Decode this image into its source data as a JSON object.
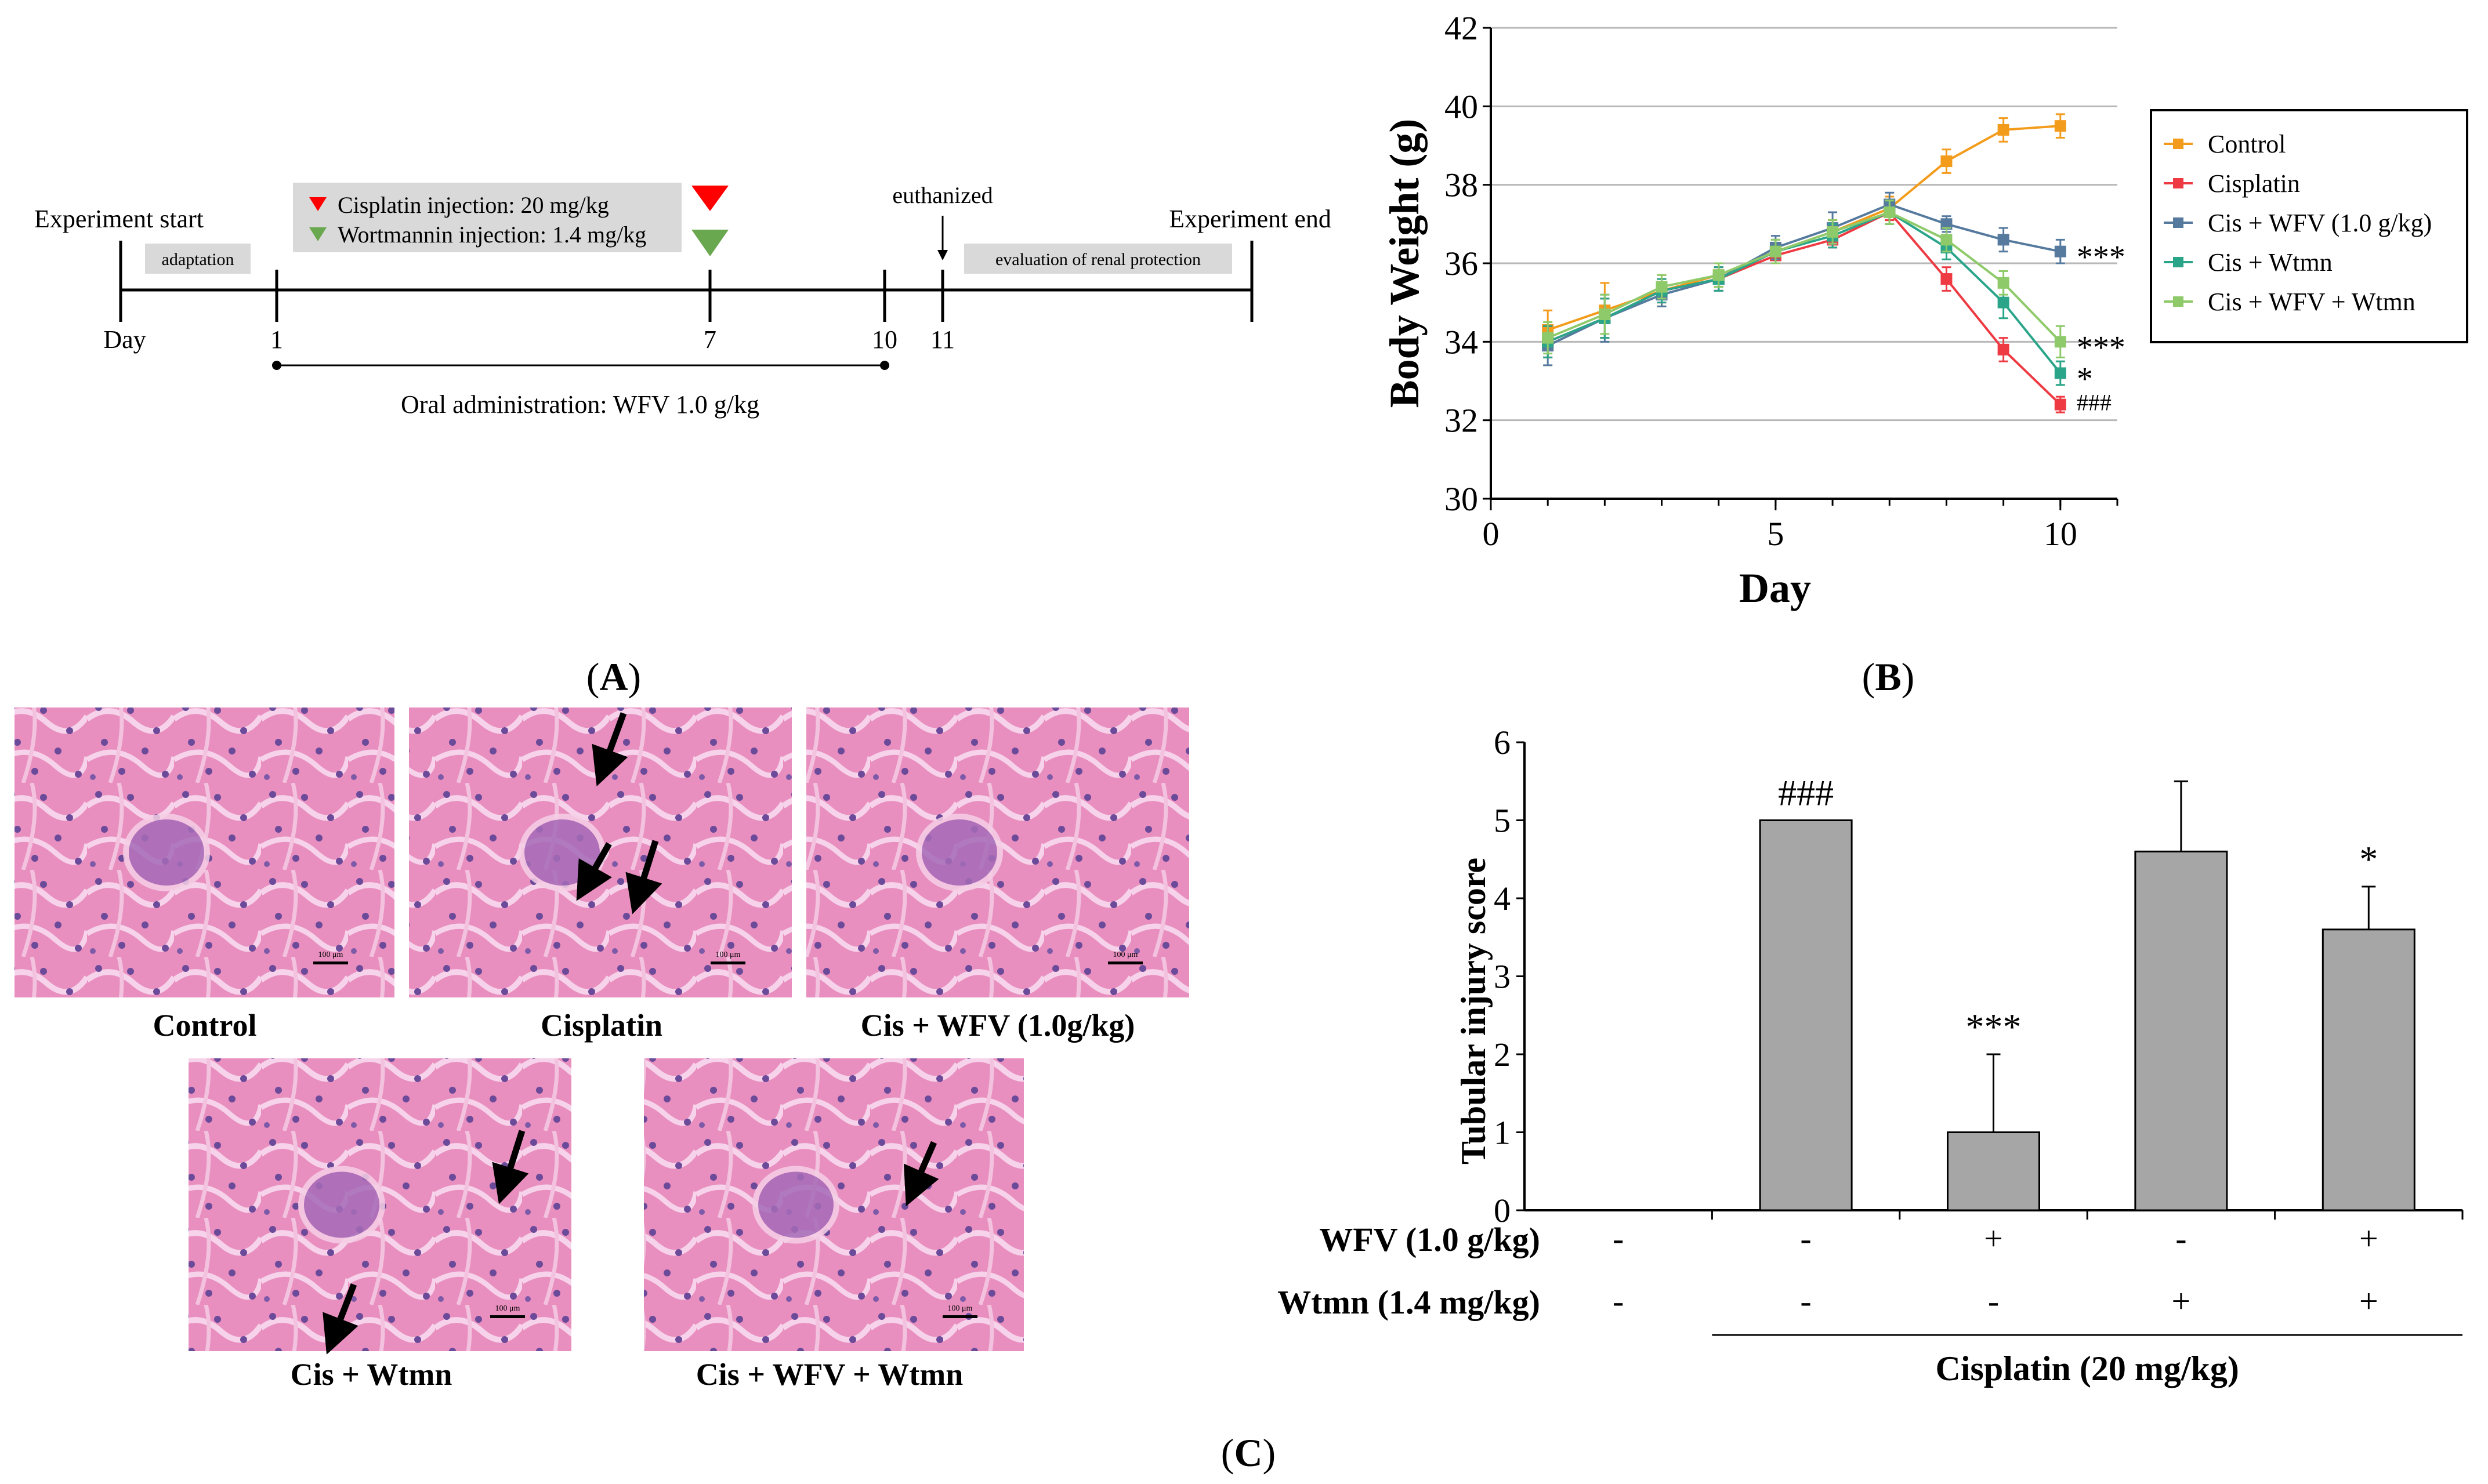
{
  "panel_a": {
    "label_open": "(",
    "label_letter": "A",
    "label_close": ")",
    "experiment_start": "Experiment start",
    "experiment_end": "Experiment end",
    "adaptation": "adaptation",
    "cisplatin_injection": "Cisplatin injection: 20 mg/kg",
    "wortmannin_injection": "Wortmannin injection: 1.4 mg/kg",
    "euthanized": "euthanized",
    "evaluation": "evaluation of renal protection",
    "day_label": "Day",
    "day_ticks": [
      "1",
      "7",
      "10",
      "11"
    ],
    "oral_admin": "Oral administration: WFV 1.0 g/kg",
    "colors": {
      "cisplatin": "#ff0000",
      "wortmannin": "#6aa84f",
      "box": "#d9d9d9"
    }
  },
  "panel_b": {
    "label_open": "(",
    "label_letter": "B",
    "label_close": ")"
  },
  "panel_c": {
    "label_open": "(",
    "label_letter": "C",
    "label_close": ")",
    "micrographs": [
      {
        "caption": "Control",
        "scale": "100 μm",
        "arrows": 0
      },
      {
        "caption": "Cisplatin",
        "scale": "100 μm",
        "arrows": 3
      },
      {
        "caption": "Cis + WFV (1.0g/kg)",
        "scale": "100 μm",
        "arrows": 0
      },
      {
        "caption": "Cis + Wtmn",
        "scale": "100 μm",
        "arrows": 2
      },
      {
        "caption": "Cis + WFV + Wtmn",
        "scale": "100 μm",
        "arrows": 1
      }
    ]
  },
  "chart_data": [
    {
      "type": "line",
      "title": "",
      "xlabel": "Day",
      "ylabel": "Body Weight (g)",
      "xlim": [
        0,
        11
      ],
      "ylim": [
        30,
        42
      ],
      "xticks": [
        0,
        5,
        10
      ],
      "yticks": [
        30,
        32,
        34,
        36,
        38,
        40,
        42
      ],
      "grid": "horizontal",
      "legend_position": "right",
      "x": [
        1,
        2,
        3,
        4,
        5,
        6,
        7,
        8,
        9,
        10
      ],
      "series": [
        {
          "name": "Control",
          "color": "#f39c1c",
          "values": [
            34.3,
            34.8,
            35.3,
            35.7,
            36.3,
            36.8,
            37.4,
            38.6,
            39.4,
            39.5
          ],
          "errors": [
            0.5,
            0.7,
            0.4,
            0.3,
            0.3,
            0.3,
            0.3,
            0.3,
            0.3,
            0.3
          ],
          "annotation": ""
        },
        {
          "name": "Cisplatin",
          "color": "#ee3a43",
          "values": [
            34.0,
            34.6,
            35.3,
            35.6,
            36.2,
            36.6,
            37.3,
            35.6,
            33.8,
            32.4
          ],
          "errors": [
            0.4,
            0.5,
            0.3,
            0.3,
            0.2,
            0.2,
            0.2,
            0.3,
            0.3,
            0.2
          ],
          "annotation": "###"
        },
        {
          "name": "Cis + WFV (1.0 g/kg)",
          "color": "#557a9e",
          "values": [
            33.9,
            34.6,
            35.2,
            35.6,
            36.4,
            36.9,
            37.5,
            37.0,
            36.6,
            36.3
          ],
          "errors": [
            0.5,
            0.6,
            0.3,
            0.3,
            0.3,
            0.4,
            0.3,
            0.2,
            0.3,
            0.3
          ],
          "annotation": "***"
        },
        {
          "name": "Cis + Wtmn",
          "color": "#2aa58a",
          "values": [
            34.0,
            34.6,
            35.3,
            35.6,
            36.3,
            36.7,
            37.3,
            36.4,
            35.0,
            33.2
          ],
          "errors": [
            0.4,
            0.5,
            0.3,
            0.3,
            0.3,
            0.3,
            0.3,
            0.3,
            0.4,
            0.3
          ],
          "annotation": "*"
        },
        {
          "name": "Cis + WFV + Wtmn",
          "color": "#8fca6a",
          "values": [
            34.1,
            34.7,
            35.4,
            35.7,
            36.3,
            36.8,
            37.3,
            36.6,
            35.5,
            34.0
          ],
          "errors": [
            0.4,
            0.5,
            0.3,
            0.3,
            0.3,
            0.3,
            0.3,
            0.3,
            0.3,
            0.4
          ],
          "annotation": "***"
        }
      ]
    },
    {
      "type": "bar",
      "title": "",
      "xlabel": "Cisplatin (20 mg/kg)",
      "ylabel": "Tubular injury score",
      "ylim": [
        0,
        6
      ],
      "yticks": [
        0,
        1,
        2,
        3,
        4,
        5,
        6
      ],
      "bar_color": "#a6a6a6",
      "values": [
        0,
        5.0,
        1.0,
        4.6,
        3.6
      ],
      "errors": [
        0,
        0,
        1.0,
        0.9,
        0.55
      ],
      "annotations": [
        "",
        "###",
        "***",
        "",
        "*"
      ],
      "row_labels": [
        "WFV (1.0 g/kg)",
        "Wtmn (1.4 mg/kg)"
      ],
      "wfv": [
        "-",
        "-",
        "+",
        "-",
        "+"
      ],
      "wtmn": [
        "-",
        "-",
        "-",
        "+",
        "+"
      ]
    }
  ]
}
